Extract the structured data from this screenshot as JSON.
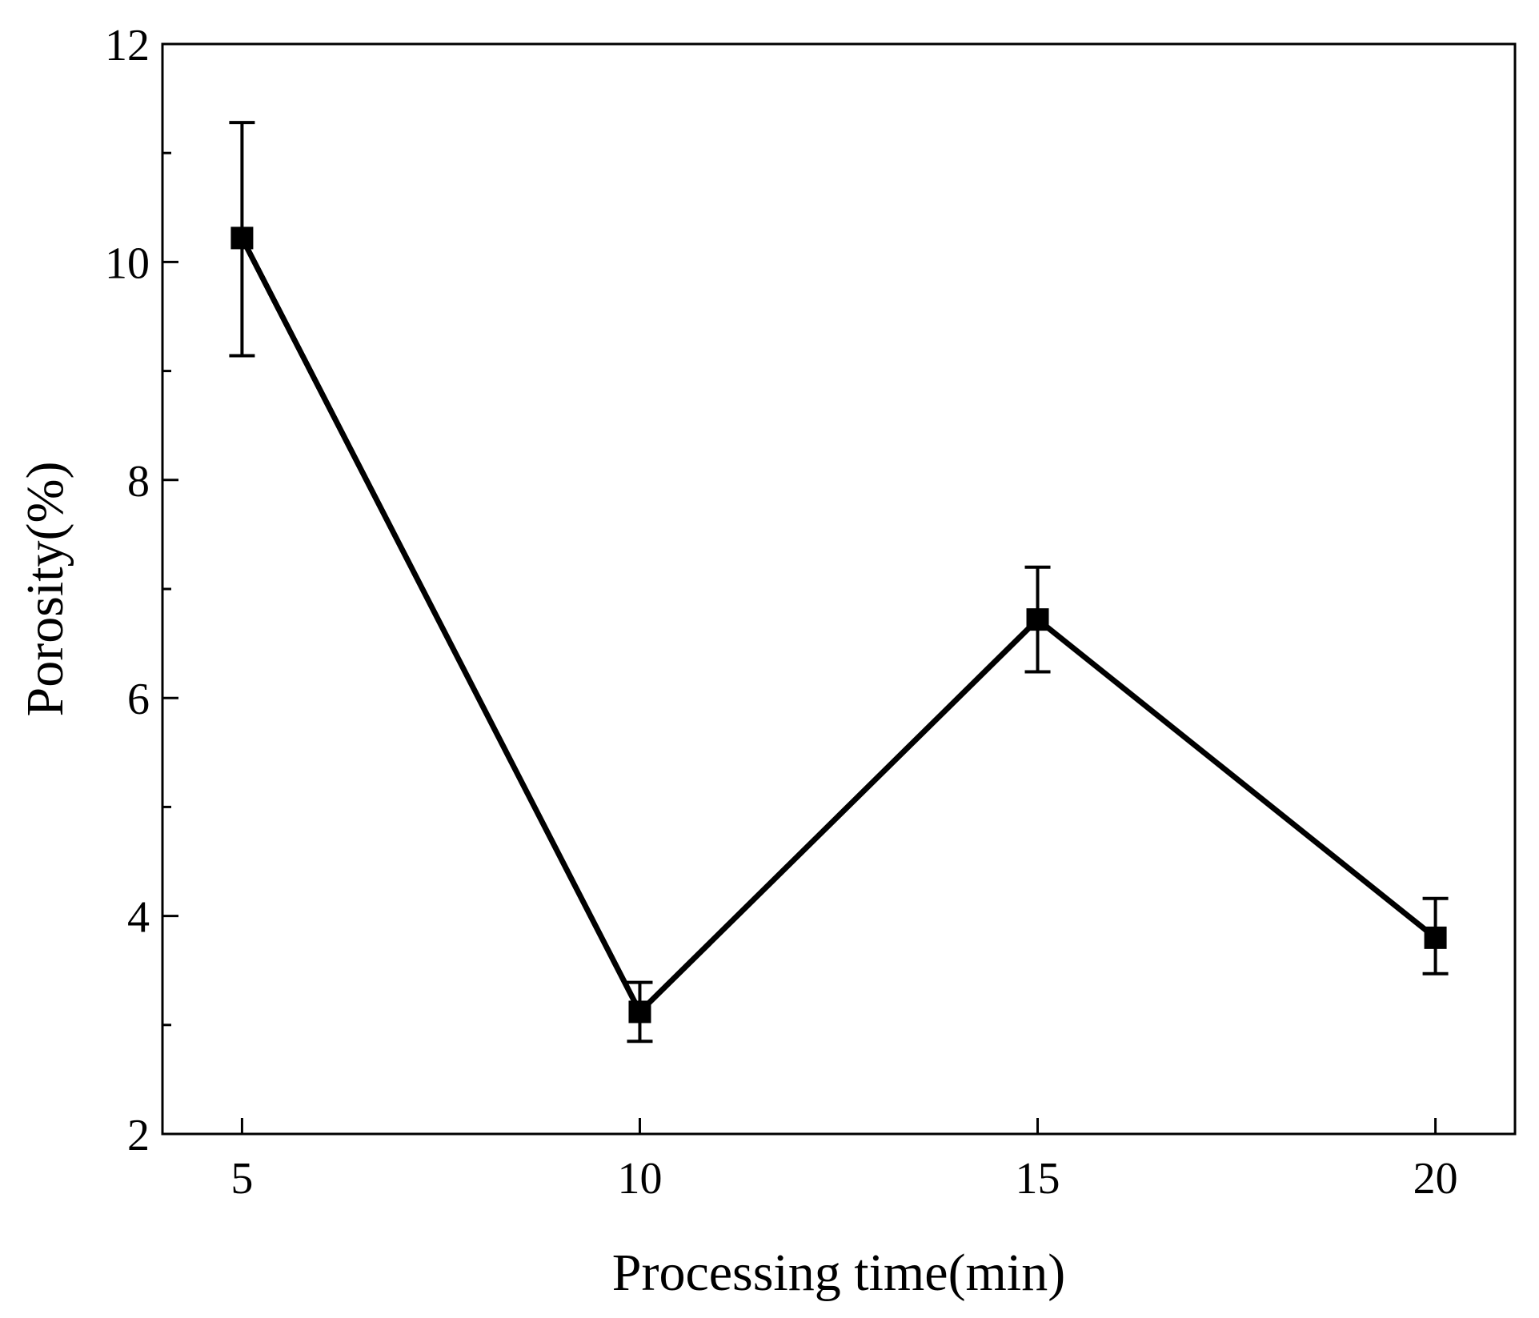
{
  "chart_data": {
    "type": "line",
    "title": "",
    "xlabel": "Processing time(min)",
    "ylabel": "Porosity(%)",
    "xlim": [
      4,
      21
    ],
    "ylim": [
      2,
      12
    ],
    "x_ticks": [
      5,
      10,
      15,
      20
    ],
    "x_tick_labels": [
      "5",
      "10",
      "15",
      "20"
    ],
    "y_ticks": [
      2,
      4,
      6,
      8,
      10,
      12
    ],
    "y_tick_labels": [
      "2",
      "4",
      "6",
      "8",
      "10",
      "12"
    ],
    "y_minor_ticks": [
      3,
      5,
      7,
      9,
      11
    ],
    "x_minor_ticks": [],
    "grid": false,
    "legend": null,
    "series": [
      {
        "name": "Porosity",
        "marker": "square",
        "color": "#000000",
        "x": [
          5,
          10,
          15,
          20
        ],
        "y": [
          10.22,
          3.12,
          6.72,
          3.8
        ],
        "error": [
          [
            9.14,
            11.28
          ],
          [
            2.85,
            3.39
          ],
          [
            6.24,
            7.2
          ],
          [
            3.47,
            4.16
          ]
        ]
      }
    ]
  }
}
